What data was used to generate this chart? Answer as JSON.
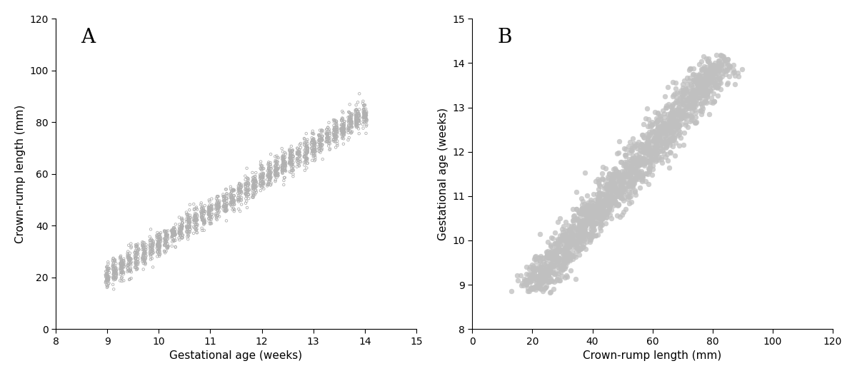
{
  "plot_A": {
    "title": "A",
    "xlabel": "Gestational age (weeks)",
    "ylabel": "Crown-rump length (mm)",
    "xlim": [
      8,
      15
    ],
    "ylim": [
      0,
      120
    ],
    "xticks": [
      8,
      9,
      10,
      11,
      12,
      13,
      14,
      15
    ],
    "yticks": [
      0,
      20,
      40,
      60,
      80,
      100,
      120
    ],
    "marker_size": 2.5,
    "marker_edge_color": "#b0b0b0",
    "marker_face_color": "none",
    "linewidth": 0.6
  },
  "plot_B": {
    "title": "B",
    "xlabel": "Crown-rump length (mm)",
    "ylabel": "Gestational age (weeks)",
    "xlim": [
      0,
      120
    ],
    "ylim": [
      8,
      15
    ],
    "xticks": [
      0,
      20,
      40,
      60,
      80,
      100,
      120
    ],
    "yticks": [
      8,
      9,
      10,
      11,
      12,
      13,
      14,
      15
    ],
    "marker_size": 5,
    "marker_color": "#c0c0c0",
    "linewidth": 0.3
  },
  "fig_background": "#ffffff",
  "seed": 42
}
